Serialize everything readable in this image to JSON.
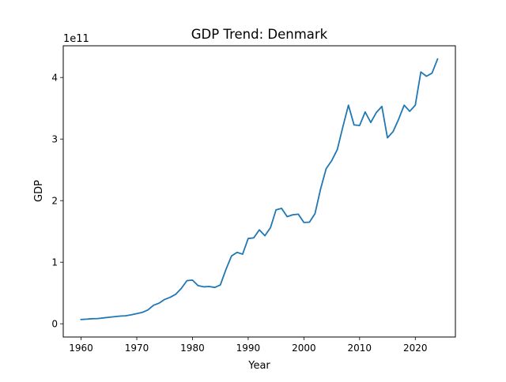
{
  "chart_data": {
    "type": "line",
    "title": "GDP Trend: Denmark",
    "xlabel": "Year",
    "ylabel": "GDP",
    "y_offset_label": "1e11",
    "xlim": [
      1956.8,
      2027.2
    ],
    "ylim": [
      -0.215,
      4.515
    ],
    "x_ticks": [
      1960,
      1970,
      1980,
      1990,
      2000,
      2010,
      2020
    ],
    "y_ticks": [
      0,
      1,
      2,
      3,
      4
    ],
    "grid": false,
    "legend": "none",
    "series_color": "#1f77b4",
    "series": [
      {
        "x": [
          1960,
          1961,
          1962,
          1963,
          1964,
          1965,
          1966,
          1967,
          1968,
          1969,
          1970,
          1971,
          1972,
          1973,
          1974,
          1975,
          1976,
          1977,
          1978,
          1979,
          1980,
          1981,
          1982,
          1983,
          1984,
          1985,
          1986,
          1987,
          1988,
          1989,
          1990,
          1991,
          1992,
          1993,
          1994,
          1995,
          1996,
          1997,
          1998,
          1999,
          2000,
          2001,
          2002,
          2003,
          2004,
          2005,
          2006,
          2007,
          2008,
          2009,
          2010,
          2011,
          2012,
          2013,
          2014,
          2015,
          2016,
          2017,
          2018,
          2019,
          2020,
          2021,
          2022,
          2023,
          2024
        ],
        "values": [
          0.07,
          0.075,
          0.082,
          0.085,
          0.095,
          0.105,
          0.115,
          0.125,
          0.13,
          0.145,
          0.165,
          0.185,
          0.225,
          0.3,
          0.335,
          0.395,
          0.43,
          0.48,
          0.575,
          0.7,
          0.71,
          0.62,
          0.6,
          0.605,
          0.59,
          0.63,
          0.88,
          1.1,
          1.16,
          1.13,
          1.385,
          1.395,
          1.525,
          1.43,
          1.56,
          1.85,
          1.875,
          1.74,
          1.77,
          1.78,
          1.645,
          1.65,
          1.79,
          2.19,
          2.52,
          2.65,
          2.83,
          3.2,
          3.55,
          3.23,
          3.22,
          3.44,
          3.27,
          3.43,
          3.53,
          3.02,
          3.12,
          3.32,
          3.55,
          3.45,
          3.55,
          4.09,
          4.02,
          4.07,
          4.3
        ]
      }
    ]
  }
}
